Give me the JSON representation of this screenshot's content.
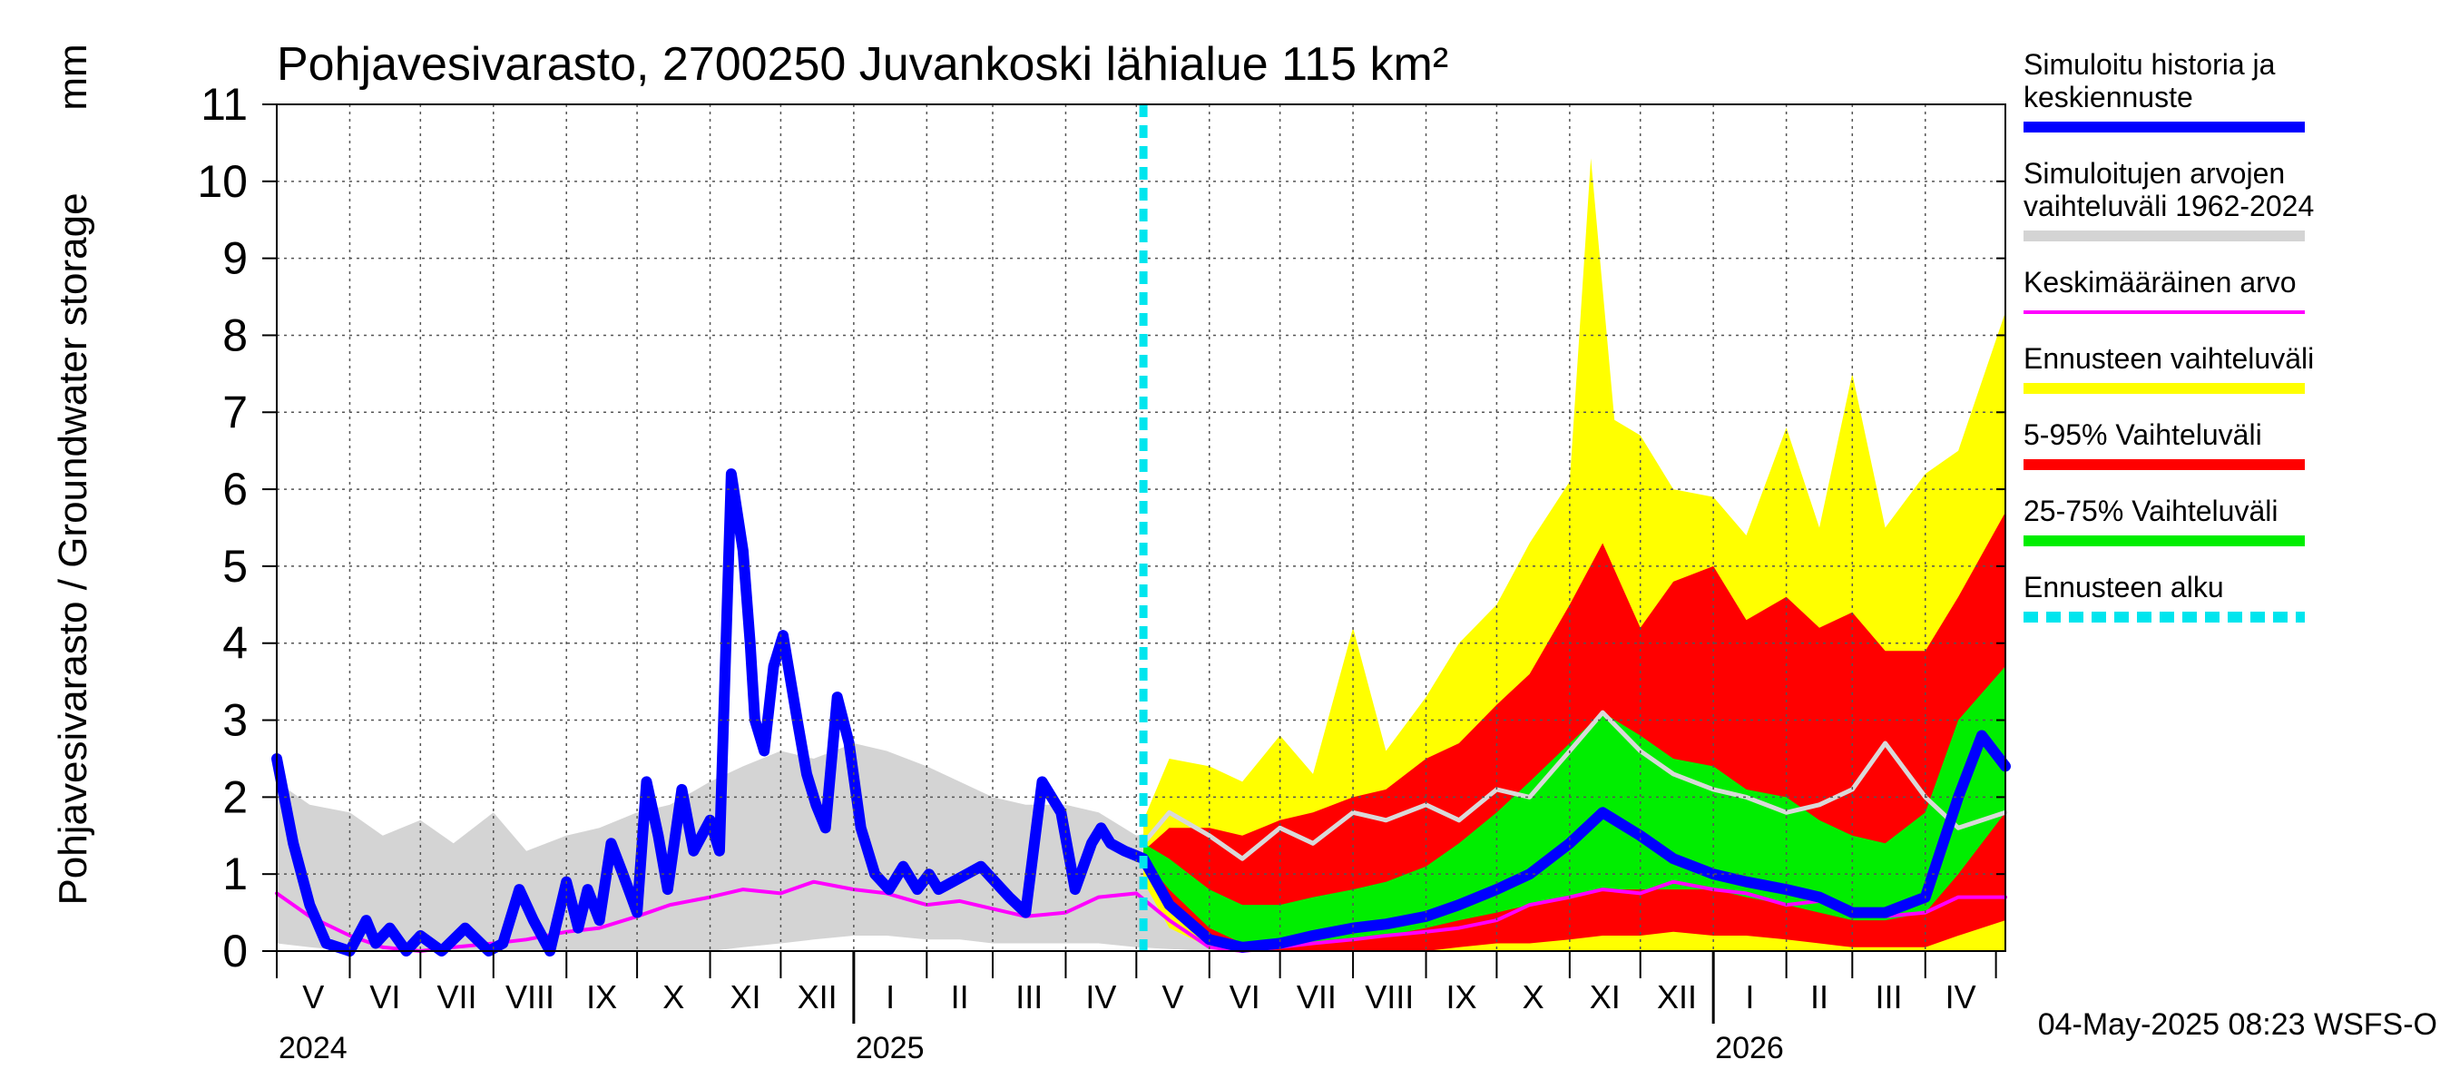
{
  "chart_data": {
    "type": "area",
    "title": "Pohjavesivarasto, 2700250 Juvankoski lähialue 115 km²",
    "ylabel": "Pohjavesivarasto / Groundwater storage",
    "yunit": "mm",
    "ylim": [
      0,
      11
    ],
    "yticks": [
      "0",
      "1",
      "2",
      "3",
      "4",
      "5",
      "6",
      "7",
      "8",
      "9",
      "10",
      "11"
    ],
    "xlim": [
      "2024-05-01",
      "2026-05-05"
    ],
    "month_labels": [
      {
        "label": "V",
        "start": "2024-05-01",
        "end": "2024-06-01"
      },
      {
        "label": "VI",
        "start": "2024-06-01",
        "end": "2024-07-01"
      },
      {
        "label": "VII",
        "start": "2024-07-01",
        "end": "2024-08-01"
      },
      {
        "label": "VIII",
        "start": "2024-08-01",
        "end": "2024-09-01"
      },
      {
        "label": "IX",
        "start": "2024-09-01",
        "end": "2024-10-01"
      },
      {
        "label": "X",
        "start": "2024-10-01",
        "end": "2024-11-01"
      },
      {
        "label": "XI",
        "start": "2024-11-01",
        "end": "2024-12-01"
      },
      {
        "label": "XII",
        "start": "2024-12-01",
        "end": "2025-01-01"
      },
      {
        "label": "I",
        "start": "2025-01-01",
        "end": "2025-02-01"
      },
      {
        "label": "II",
        "start": "2025-02-01",
        "end": "2025-03-01"
      },
      {
        "label": "III",
        "start": "2025-03-01",
        "end": "2025-04-01"
      },
      {
        "label": "IV",
        "start": "2025-04-01",
        "end": "2025-05-01"
      },
      {
        "label": "V",
        "start": "2025-05-01",
        "end": "2025-06-01"
      },
      {
        "label": "VI",
        "start": "2025-06-01",
        "end": "2025-07-01"
      },
      {
        "label": "VII",
        "start": "2025-07-01",
        "end": "2025-08-01"
      },
      {
        "label": "VIII",
        "start": "2025-08-01",
        "end": "2025-09-01"
      },
      {
        "label": "IX",
        "start": "2025-09-01",
        "end": "2025-10-01"
      },
      {
        "label": "X",
        "start": "2025-10-01",
        "end": "2025-11-01"
      },
      {
        "label": "XI",
        "start": "2025-11-01",
        "end": "2025-12-01"
      },
      {
        "label": "XII",
        "start": "2025-12-01",
        "end": "2026-01-01"
      },
      {
        "label": "I",
        "start": "2026-01-01",
        "end": "2026-02-01"
      },
      {
        "label": "II",
        "start": "2026-02-01",
        "end": "2026-03-01"
      },
      {
        "label": "III",
        "start": "2026-03-01",
        "end": "2026-04-01"
      },
      {
        "label": "IV",
        "start": "2026-04-01",
        "end": "2026-05-01"
      }
    ],
    "year_labels": [
      {
        "label": "2024",
        "date": "2024-05-01"
      },
      {
        "label": "2025",
        "date": "2025-01-01"
      },
      {
        "label": "2026",
        "date": "2026-01-01"
      }
    ],
    "forecast_start": "2025-05-04",
    "timestamp": "04-May-2025 08:23 WSFS-O",
    "legend_position": "right",
    "legend": [
      {
        "label": "Simuloitu historia ja\nkeskiennuste",
        "color": "#0000ff",
        "style": "thick"
      },
      {
        "label": "Simuloitujen arvojen\nvaihteluväli 1962-2024",
        "color": "#d4d4d4",
        "style": "thick"
      },
      {
        "label": "Keskimääräinen arvo",
        "color": "#ff00ff",
        "style": "thin"
      },
      {
        "label": "Ennusteen vaihteluväli",
        "color": "#ffff00",
        "style": "thick"
      },
      {
        "label": "5-95% Vaihteluväli",
        "color": "#ff0000",
        "style": "thick"
      },
      {
        "label": "25-75% Vaihteluväli",
        "color": "#00ee00",
        "style": "thick"
      },
      {
        "label": "Ennusteen alku",
        "color": "#00e5ee",
        "style": "dashed"
      }
    ],
    "series": [
      {
        "name": "Simuloitujen arvojen vaihteluväli 1962-2024",
        "color": "#d4d4d4",
        "x": [
          "2024-05-01",
          "2024-05-15",
          "2024-06-01",
          "2024-06-15",
          "2024-07-01",
          "2024-07-15",
          "2024-08-01",
          "2024-08-15",
          "2024-09-01",
          "2024-09-15",
          "2024-10-01",
          "2024-10-15",
          "2024-11-01",
          "2024-11-15",
          "2024-12-01",
          "2024-12-15",
          "2025-01-01",
          "2025-01-15",
          "2025-02-01",
          "2025-02-15",
          "2025-03-01",
          "2025-03-15",
          "2025-04-01",
          "2025-04-15",
          "2025-05-01",
          "2025-06-01",
          "2025-07-01",
          "2025-08-01",
          "2025-09-01",
          "2025-10-01",
          "2025-11-01",
          "2025-12-01",
          "2026-01-01",
          "2026-02-01",
          "2026-03-01",
          "2026-04-01",
          "2026-05-05"
        ],
        "lower": [
          0.1,
          0.05,
          0.0,
          0.0,
          0.0,
          0.0,
          0.0,
          0.0,
          0.0,
          0.0,
          0.0,
          0.0,
          0.0,
          0.05,
          0.1,
          0.15,
          0.2,
          0.2,
          0.15,
          0.15,
          0.1,
          0.1,
          0.1,
          0.1,
          0.05,
          0.0,
          0.0,
          0.0,
          0.0,
          0.0,
          0.0,
          0.05,
          0.1,
          0.1,
          0.1,
          0.1,
          0.05
        ],
        "upper": [
          2.2,
          1.9,
          1.8,
          1.5,
          1.7,
          1.4,
          1.8,
          1.3,
          1.5,
          1.6,
          1.8,
          1.9,
          2.2,
          2.4,
          2.6,
          2.5,
          2.7,
          2.6,
          2.4,
          2.2,
          2.0,
          1.9,
          1.9,
          1.8,
          1.5,
          1.7,
          1.6,
          1.9,
          2.0,
          2.2,
          2.5,
          2.6,
          2.6,
          2.4,
          2.2,
          2.0,
          1.6
        ]
      },
      {
        "name": "Ennusteen vaihteluväli",
        "color": "#ffff00",
        "x": [
          "2025-05-04",
          "2025-05-15",
          "2025-06-01",
          "2025-06-15",
          "2025-07-01",
          "2025-07-15",
          "2025-08-01",
          "2025-08-15",
          "2025-09-01",
          "2025-09-15",
          "2025-10-01",
          "2025-10-15",
          "2025-11-01",
          "2025-11-10",
          "2025-11-20",
          "2025-12-01",
          "2025-12-15",
          "2026-01-01",
          "2026-01-15",
          "2026-02-01",
          "2026-02-15",
          "2026-03-01",
          "2026-03-15",
          "2026-04-01",
          "2026-04-15",
          "2026-05-05"
        ],
        "lower": [
          0.9,
          0.3,
          0.05,
          0.0,
          0.0,
          0.0,
          0.0,
          0.0,
          0.0,
          0.0,
          0.0,
          0.0,
          0.0,
          0.0,
          0.0,
          0.0,
          0.0,
          0.0,
          0.0,
          0.0,
          0.0,
          0.0,
          0.0,
          0.0,
          0.0,
          0.0
        ],
        "upper": [
          1.7,
          2.5,
          2.4,
          2.2,
          2.8,
          2.3,
          4.2,
          2.6,
          3.3,
          4.0,
          4.5,
          5.3,
          6.1,
          10.3,
          6.9,
          6.7,
          6.0,
          5.9,
          5.4,
          6.8,
          5.5,
          7.5,
          5.5,
          6.2,
          6.5,
          8.3
        ]
      },
      {
        "name": "5-95% Vaihteluväli",
        "color": "#ff0000",
        "x": [
          "2025-05-04",
          "2025-05-15",
          "2025-06-01",
          "2025-06-15",
          "2025-07-01",
          "2025-07-15",
          "2025-08-01",
          "2025-08-15",
          "2025-09-01",
          "2025-09-15",
          "2025-10-01",
          "2025-10-15",
          "2025-11-01",
          "2025-11-15",
          "2025-12-01",
          "2025-12-15",
          "2026-01-01",
          "2026-01-15",
          "2026-02-01",
          "2026-02-15",
          "2026-03-01",
          "2026-03-15",
          "2026-04-01",
          "2026-04-15",
          "2026-05-05"
        ],
        "lower": [
          1.1,
          0.6,
          0.1,
          0.0,
          0.0,
          0.0,
          0.0,
          0.0,
          0.0,
          0.05,
          0.1,
          0.1,
          0.15,
          0.2,
          0.2,
          0.25,
          0.2,
          0.2,
          0.15,
          0.1,
          0.05,
          0.05,
          0.05,
          0.2,
          0.4
        ],
        "upper": [
          1.3,
          1.6,
          1.6,
          1.5,
          1.7,
          1.8,
          2.0,
          2.1,
          2.5,
          2.7,
          3.2,
          3.6,
          4.5,
          5.3,
          4.2,
          4.8,
          5.0,
          4.3,
          4.6,
          4.2,
          4.4,
          3.9,
          3.9,
          4.6,
          5.7
        ]
      },
      {
        "name": "25-75% Vaihteluväli",
        "color": "#00ee00",
        "x": [
          "2025-05-04",
          "2025-05-15",
          "2025-06-01",
          "2025-06-15",
          "2025-07-01",
          "2025-07-15",
          "2025-08-01",
          "2025-08-15",
          "2025-09-01",
          "2025-09-15",
          "2025-10-01",
          "2025-10-15",
          "2025-11-01",
          "2025-11-15",
          "2025-12-01",
          "2025-12-15",
          "2026-01-01",
          "2026-01-15",
          "2026-02-01",
          "2026-02-15",
          "2026-03-01",
          "2026-03-15",
          "2026-04-01",
          "2026-04-15",
          "2026-05-05"
        ],
        "lower": [
          1.2,
          0.8,
          0.3,
          0.1,
          0.1,
          0.1,
          0.15,
          0.2,
          0.3,
          0.4,
          0.5,
          0.6,
          0.7,
          0.8,
          0.8,
          0.8,
          0.8,
          0.7,
          0.6,
          0.5,
          0.4,
          0.4,
          0.5,
          1.0,
          1.8
        ],
        "upper": [
          1.4,
          1.2,
          0.8,
          0.6,
          0.6,
          0.7,
          0.8,
          0.9,
          1.1,
          1.4,
          1.8,
          2.2,
          2.7,
          3.1,
          2.8,
          2.5,
          2.4,
          2.1,
          2.0,
          1.7,
          1.5,
          1.4,
          1.8,
          3.0,
          3.7
        ]
      },
      {
        "name": "Keskimääräinen arvo",
        "color": "#ff00ff",
        "x": [
          "2024-05-01",
          "2024-05-15",
          "2024-06-01",
          "2024-06-15",
          "2024-07-01",
          "2024-07-15",
          "2024-08-01",
          "2024-08-15",
          "2024-09-01",
          "2024-09-15",
          "2024-10-01",
          "2024-10-15",
          "2024-11-01",
          "2024-11-15",
          "2024-12-01",
          "2024-12-15",
          "2025-01-01",
          "2025-01-15",
          "2025-02-01",
          "2025-02-15",
          "2025-03-01",
          "2025-03-15",
          "2025-04-01",
          "2025-04-15",
          "2025-05-01",
          "2025-05-15",
          "2025-06-01",
          "2025-06-15",
          "2025-07-01",
          "2025-07-15",
          "2025-08-01",
          "2025-08-15",
          "2025-09-01",
          "2025-09-15",
          "2025-10-01",
          "2025-10-15",
          "2025-11-01",
          "2025-11-15",
          "2025-12-01",
          "2025-12-15",
          "2026-01-01",
          "2026-01-15",
          "2026-02-01",
          "2026-02-15",
          "2026-03-01",
          "2026-03-15",
          "2026-04-01",
          "2026-04-15",
          "2026-05-05"
        ],
        "values": [
          0.75,
          0.45,
          0.2,
          0.05,
          0.0,
          0.05,
          0.1,
          0.15,
          0.25,
          0.3,
          0.45,
          0.6,
          0.7,
          0.8,
          0.75,
          0.9,
          0.8,
          0.75,
          0.6,
          0.65,
          0.55,
          0.45,
          0.5,
          0.7,
          0.75,
          0.4,
          0.05,
          0.0,
          0.05,
          0.1,
          0.15,
          0.2,
          0.25,
          0.3,
          0.4,
          0.6,
          0.7,
          0.8,
          0.75,
          0.9,
          0.8,
          0.75,
          0.6,
          0.65,
          0.55,
          0.45,
          0.5,
          0.7,
          0.7
        ]
      },
      {
        "name": "Simuloitujen arvojen mediaani",
        "color": "#d9d9d9",
        "x": [
          "2025-05-04",
          "2025-05-15",
          "2025-06-01",
          "2025-06-15",
          "2025-07-01",
          "2025-07-15",
          "2025-08-01",
          "2025-08-15",
          "2025-09-01",
          "2025-09-15",
          "2025-10-01",
          "2025-10-15",
          "2025-11-01",
          "2025-11-15",
          "2025-12-01",
          "2025-12-15",
          "2026-01-01",
          "2026-01-15",
          "2026-02-01",
          "2026-02-15",
          "2026-03-01",
          "2026-03-15",
          "2026-04-01",
          "2026-04-15",
          "2026-05-05"
        ],
        "values": [
          1.4,
          1.8,
          1.5,
          1.2,
          1.6,
          1.4,
          1.8,
          1.7,
          1.9,
          1.7,
          2.1,
          2.0,
          2.6,
          3.1,
          2.6,
          2.3,
          2.1,
          2.0,
          1.8,
          1.9,
          2.1,
          2.7,
          2.0,
          1.6,
          1.8
        ]
      },
      {
        "name": "Simuloitu historia ja keskiennuste",
        "color": "#0000ff",
        "x": [
          "2024-05-01",
          "2024-05-08",
          "2024-05-15",
          "2024-05-22",
          "2024-06-01",
          "2024-06-08",
          "2024-06-12",
          "2024-06-18",
          "2024-06-25",
          "2024-07-01",
          "2024-07-10",
          "2024-07-20",
          "2024-07-30",
          "2024-08-05",
          "2024-08-12",
          "2024-08-18",
          "2024-08-25",
          "2024-09-01",
          "2024-09-06",
          "2024-09-10",
          "2024-09-15",
          "2024-09-20",
          "2024-09-25",
          "2024-10-01",
          "2024-10-05",
          "2024-10-10",
          "2024-10-14",
          "2024-10-20",
          "2024-10-25",
          "2024-11-01",
          "2024-11-05",
          "2024-11-10",
          "2024-11-15",
          "2024-11-18",
          "2024-11-20",
          "2024-11-24",
          "2024-11-28",
          "2024-12-02",
          "2024-12-08",
          "2024-12-12",
          "2024-12-16",
          "2024-12-20",
          "2024-12-25",
          "2024-12-30",
          "2025-01-04",
          "2025-01-10",
          "2025-01-16",
          "2025-01-22",
          "2025-01-28",
          "2025-02-02",
          "2025-02-06",
          "2025-02-12",
          "2025-02-18",
          "2025-02-24",
          "2025-03-02",
          "2025-03-08",
          "2025-03-15",
          "2025-03-22",
          "2025-03-30",
          "2025-04-05",
          "2025-04-12",
          "2025-04-16",
          "2025-04-20",
          "2025-04-26",
          "2025-05-04",
          "2025-05-15",
          "2025-06-01",
          "2025-06-15",
          "2025-07-01",
          "2025-07-15",
          "2025-08-01",
          "2025-08-15",
          "2025-09-01",
          "2025-09-15",
          "2025-10-01",
          "2025-10-15",
          "2025-11-01",
          "2025-11-15",
          "2025-12-01",
          "2025-12-15",
          "2026-01-01",
          "2026-01-15",
          "2026-02-01",
          "2026-02-15",
          "2026-03-01",
          "2026-03-15",
          "2026-04-01",
          "2026-04-15",
          "2026-04-25",
          "2026-05-05"
        ],
        "values": [
          2.5,
          1.4,
          0.6,
          0.1,
          0.0,
          0.4,
          0.1,
          0.3,
          0.0,
          0.2,
          0.0,
          0.3,
          0.0,
          0.1,
          0.8,
          0.4,
          0.0,
          0.9,
          0.3,
          0.8,
          0.4,
          1.4,
          1.0,
          0.5,
          2.2,
          1.5,
          0.8,
          2.1,
          1.3,
          1.7,
          1.3,
          6.2,
          5.2,
          4.0,
          3.0,
          2.6,
          3.7,
          4.1,
          3.0,
          2.3,
          1.9,
          1.6,
          3.3,
          2.7,
          1.6,
          1.0,
          0.8,
          1.1,
          0.8,
          1.0,
          0.8,
          0.9,
          1.0,
          1.1,
          0.9,
          0.7,
          0.5,
          2.2,
          1.8,
          0.8,
          1.4,
          1.6,
          1.4,
          1.3,
          1.2,
          0.6,
          0.15,
          0.05,
          0.1,
          0.2,
          0.3,
          0.35,
          0.45,
          0.6,
          0.8,
          1.0,
          1.4,
          1.8,
          1.5,
          1.2,
          1.0,
          0.9,
          0.8,
          0.7,
          0.5,
          0.5,
          0.7,
          2.0,
          2.8,
          2.4
        ]
      }
    ]
  }
}
